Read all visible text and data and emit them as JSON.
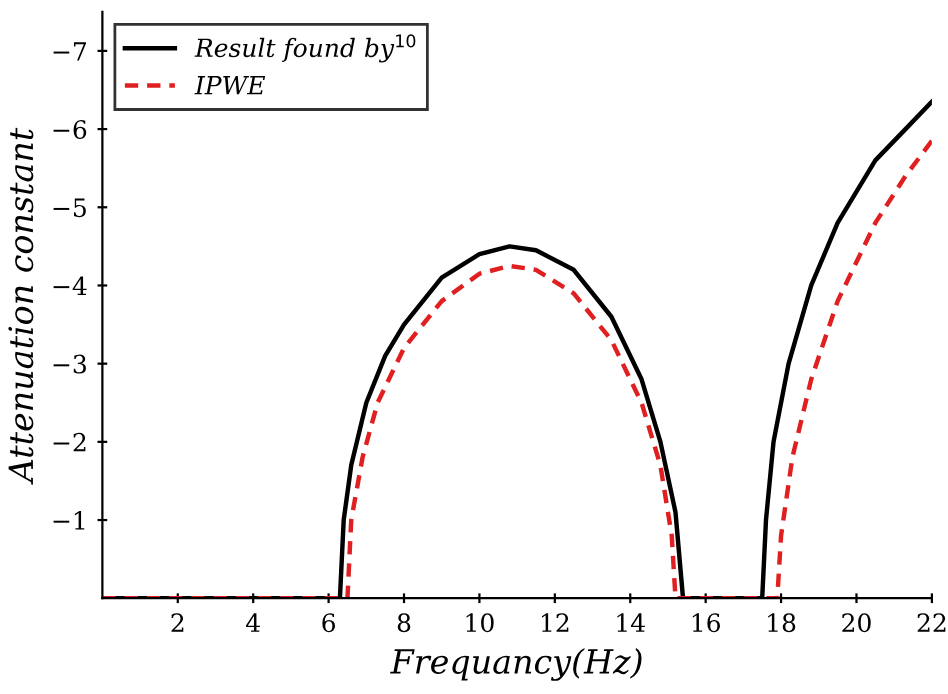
{
  "chart_data": {
    "type": "line",
    "xlabel": "Frequancy(Hz)",
    "ylabel": "Attenuation constant",
    "xlim": [
      0,
      22
    ],
    "xticks": [
      2,
      4,
      6,
      8,
      10,
      12,
      14,
      16,
      18,
      20,
      22
    ],
    "ylim": [
      0,
      -7.5
    ],
    "yticks": [
      -1,
      -2,
      -3,
      -4,
      -5,
      -6,
      -7
    ],
    "legend": "top left",
    "grid": false,
    "series": [
      {
        "name": "Result found by$^{10}$",
        "color": "#000000",
        "line_style": "solid",
        "x": [
          0,
          6.3,
          6.4,
          6.6,
          7,
          7.5,
          8,
          9,
          10,
          10.8,
          11.5,
          12.5,
          13.5,
          14.3,
          14.8,
          15.2,
          15.4,
          17.5,
          17.6,
          17.8,
          18.2,
          18.8,
          19.5,
          20.5,
          21.3,
          22
        ],
        "values": [
          0,
          0,
          -1,
          -1.7,
          -2.5,
          -3.1,
          -3.5,
          -4.1,
          -4.4,
          -4.5,
          -4.45,
          -4.2,
          -3.6,
          -2.8,
          -2.0,
          -1.1,
          0,
          0,
          -1,
          -2,
          -3,
          -4,
          -4.8,
          -5.6,
          -6.0,
          -6.35
        ]
      },
      {
        "name": "IPWE",
        "color": "#e02020",
        "line_style": "dashed",
        "x": [
          0,
          6.5,
          6.6,
          6.9,
          7.3,
          8,
          9,
          10,
          10.8,
          11.5,
          12.5,
          13.5,
          14.3,
          14.8,
          15.1,
          15.2,
          17.9,
          18,
          18.3,
          18.8,
          19.5,
          20.5,
          21.3,
          22
        ],
        "values": [
          0,
          0,
          -1,
          -1.8,
          -2.5,
          -3.2,
          -3.8,
          -4.15,
          -4.25,
          -4.2,
          -3.9,
          -3.3,
          -2.5,
          -1.7,
          -0.8,
          0,
          0,
          -0.8,
          -1.8,
          -2.8,
          -3.8,
          -4.8,
          -5.4,
          -5.85
        ]
      }
    ]
  }
}
